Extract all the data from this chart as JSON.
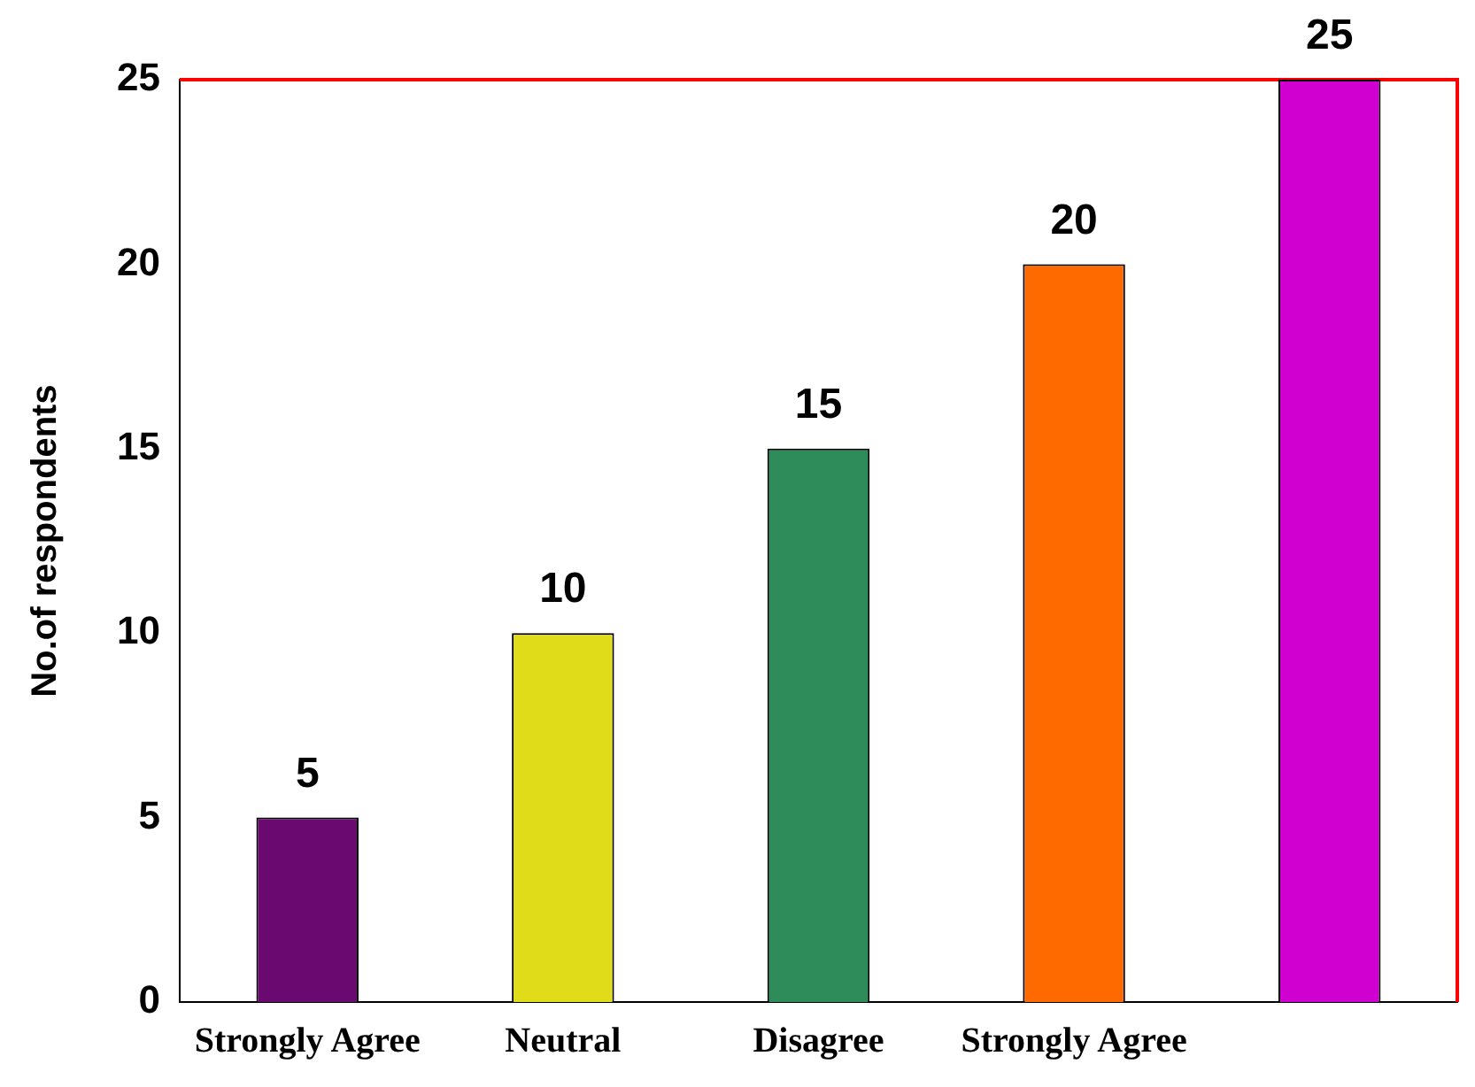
{
  "chart_data": {
    "type": "bar",
    "ylabel": "No.of respondents",
    "categories": [
      "Strongly Agree",
      "Neutral",
      "Disagree",
      "Strongly Agree",
      null
    ],
    "values": [
      5,
      10,
      15,
      20,
      25
    ],
    "colors": [
      "#6a0a70",
      "#e0dc1a",
      "#2e8b5a",
      "#ff6a00",
      "#d000d0"
    ],
    "ylim": [
      0,
      25
    ],
    "yticks": [
      0,
      5,
      10,
      15,
      20,
      25
    ],
    "grid": false,
    "legend": false,
    "data_labels": true
  }
}
